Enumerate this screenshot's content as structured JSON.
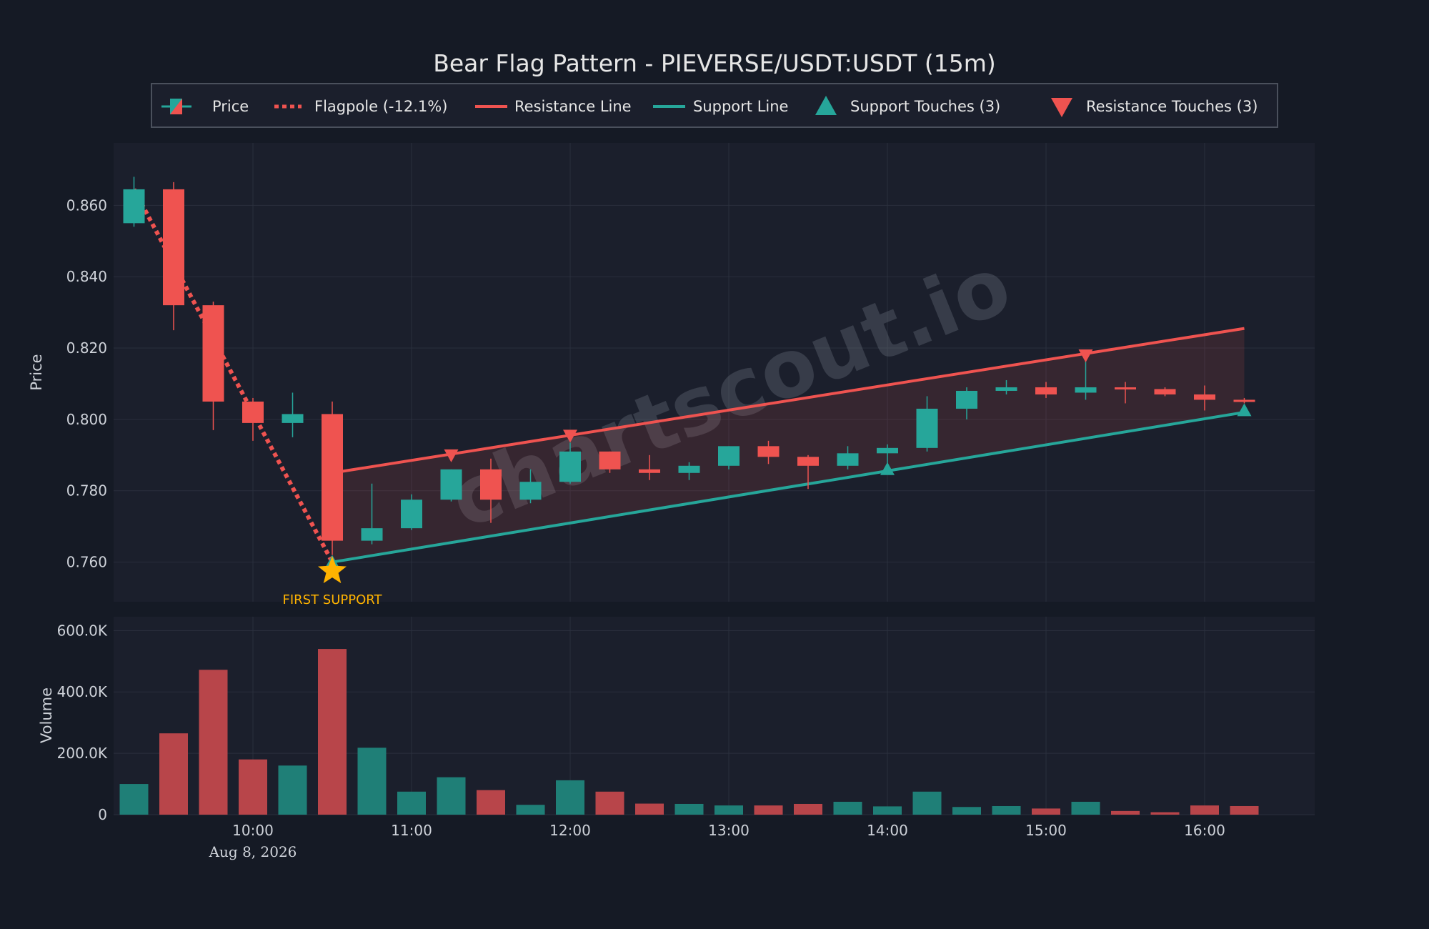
{
  "colors": {
    "background": "#151a25",
    "panel": "#1b1f2c",
    "grid": "#2a2f3d",
    "bull": "#26a69a",
    "bear": "#ef5350",
    "bull_volume": "#1f7f77",
    "bear_volume": "#b8454a",
    "text": "#e6e6e6",
    "label": "#cfd3da",
    "accent": "#ffb300",
    "watermark": "#6c7480"
  },
  "watermark": "chartscout.io",
  "chart_data": {
    "type": "candlestick",
    "title": "Bear Flag Pattern - PIEVERSE/USDT:USDT (15m)",
    "legend": {
      "placement": "top-center",
      "items": [
        {
          "key": "price",
          "label": "Price"
        },
        {
          "key": "flagpole",
          "label": "Flagpole (-12.1%)"
        },
        {
          "key": "resistance",
          "label": "Resistance Line"
        },
        {
          "key": "support",
          "label": "Support Line"
        },
        {
          "key": "support_touch",
          "label": "Support Touches (3)"
        },
        {
          "key": "resistance_touch",
          "label": "Resistance Touches (3)"
        }
      ]
    },
    "ylabel": "Price",
    "volume_label": "Volume",
    "date_label": "Aug 8, 2026",
    "x_ticks": [
      "10:00",
      "11:00",
      "12:00",
      "13:00",
      "14:00",
      "15:00",
      "16:00"
    ],
    "x_tick_hours": [
      10,
      11,
      12,
      13,
      14,
      15,
      16
    ],
    "price_ticks": [
      "0.760",
      "0.780",
      "0.800",
      "0.820",
      "0.840",
      "0.860"
    ],
    "price_tick_values": [
      0.76,
      0.78,
      0.8,
      0.82,
      0.84,
      0.86
    ],
    "price_range": [
      0.7489,
      0.8775
    ],
    "volume_ticks": [
      "0",
      "200.0K",
      "400.0K",
      "600.0K"
    ],
    "volume_tick_values": [
      0,
      200000,
      400000,
      600000
    ],
    "volume_range": [
      0,
      645000
    ],
    "candles": [
      {
        "t": "09:15",
        "o": 0.855,
        "h": 0.868,
        "l": 0.854,
        "c": 0.8645,
        "v": 100000
      },
      {
        "t": "09:30",
        "o": 0.8645,
        "h": 0.8665,
        "l": 0.825,
        "c": 0.832,
        "v": 265000
      },
      {
        "t": "09:45",
        "o": 0.832,
        "h": 0.833,
        "l": 0.797,
        "c": 0.805,
        "v": 472000
      },
      {
        "t": "10:00",
        "o": 0.805,
        "h": 0.806,
        "l": 0.794,
        "c": 0.799,
        "v": 180000
      },
      {
        "t": "10:15",
        "o": 0.799,
        "h": 0.8075,
        "l": 0.795,
        "c": 0.8015,
        "v": 160000
      },
      {
        "t": "10:30",
        "o": 0.8015,
        "h": 0.805,
        "l": 0.762,
        "c": 0.766,
        "v": 540000
      },
      {
        "t": "10:45",
        "o": 0.766,
        "h": 0.782,
        "l": 0.765,
        "c": 0.7695,
        "v": 218000
      },
      {
        "t": "11:00",
        "o": 0.7695,
        "h": 0.779,
        "l": 0.769,
        "c": 0.7775,
        "v": 75000
      },
      {
        "t": "11:15",
        "o": 0.7775,
        "h": 0.786,
        "l": 0.777,
        "c": 0.786,
        "v": 122000
      },
      {
        "t": "11:30",
        "o": 0.786,
        "h": 0.789,
        "l": 0.771,
        "c": 0.7775,
        "v": 80000
      },
      {
        "t": "11:45",
        "o": 0.7775,
        "h": 0.786,
        "l": 0.7765,
        "c": 0.7825,
        "v": 32000
      },
      {
        "t": "12:00",
        "o": 0.7825,
        "h": 0.7935,
        "l": 0.782,
        "c": 0.791,
        "v": 112000
      },
      {
        "t": "12:15",
        "o": 0.791,
        "h": 0.791,
        "l": 0.785,
        "c": 0.786,
        "v": 75000
      },
      {
        "t": "12:30",
        "o": 0.786,
        "h": 0.79,
        "l": 0.783,
        "c": 0.785,
        "v": 36000
      },
      {
        "t": "12:45",
        "o": 0.785,
        "h": 0.788,
        "l": 0.783,
        "c": 0.787,
        "v": 35000
      },
      {
        "t": "13:00",
        "o": 0.787,
        "h": 0.7925,
        "l": 0.786,
        "c": 0.7925,
        "v": 30000
      },
      {
        "t": "13:15",
        "o": 0.7925,
        "h": 0.794,
        "l": 0.7875,
        "c": 0.7895,
        "v": 30000
      },
      {
        "t": "13:30",
        "o": 0.7895,
        "h": 0.79,
        "l": 0.7805,
        "c": 0.787,
        "v": 35000
      },
      {
        "t": "13:45",
        "o": 0.787,
        "h": 0.7925,
        "l": 0.786,
        "c": 0.7905,
        "v": 42000
      },
      {
        "t": "14:00",
        "o": 0.7905,
        "h": 0.793,
        "l": 0.7855,
        "c": 0.792,
        "v": 27000
      },
      {
        "t": "14:15",
        "o": 0.792,
        "h": 0.8065,
        "l": 0.791,
        "c": 0.803,
        "v": 75000
      },
      {
        "t": "14:30",
        "o": 0.803,
        "h": 0.809,
        "l": 0.8,
        "c": 0.808,
        "v": 25000
      },
      {
        "t": "14:45",
        "o": 0.808,
        "h": 0.811,
        "l": 0.807,
        "c": 0.809,
        "v": 28000
      },
      {
        "t": "15:00",
        "o": 0.809,
        "h": 0.8105,
        "l": 0.806,
        "c": 0.807,
        "v": 20000
      },
      {
        "t": "15:15",
        "o": 0.8075,
        "h": 0.8175,
        "l": 0.8055,
        "c": 0.809,
        "v": 42000
      },
      {
        "t": "15:30",
        "o": 0.809,
        "h": 0.8105,
        "l": 0.8045,
        "c": 0.8085,
        "v": 12000
      },
      {
        "t": "15:45",
        "o": 0.8085,
        "h": 0.809,
        "l": 0.8065,
        "c": 0.807,
        "v": 8000
      },
      {
        "t": "16:00",
        "o": 0.807,
        "h": 0.8095,
        "l": 0.8025,
        "c": 0.8055,
        "v": 30000
      },
      {
        "t": "16:15",
        "o": 0.8055,
        "h": 0.806,
        "l": 0.8045,
        "c": 0.805,
        "v": 28000
      }
    ],
    "flagpole": [
      {
        "t": "09:15",
        "price": 0.8645
      },
      {
        "t": "10:30",
        "price": 0.76
      }
    ],
    "resistance_line": [
      {
        "t": "10:30",
        "price": 0.785
      },
      {
        "t": "16:15",
        "price": 0.8255
      }
    ],
    "support_line": [
      {
        "t": "10:30",
        "price": 0.76
      },
      {
        "t": "16:15",
        "price": 0.802
      }
    ],
    "support_touches": [
      {
        "t": "10:30",
        "price": 0.76
      },
      {
        "t": "14:00",
        "price": 0.786
      },
      {
        "t": "16:15",
        "price": 0.8025
      }
    ],
    "resistance_touches": [
      {
        "t": "11:15",
        "price": 0.79
      },
      {
        "t": "12:00",
        "price": 0.7955
      },
      {
        "t": "15:15",
        "price": 0.818
      }
    ],
    "annotation": {
      "t": "10:30",
      "price": 0.7575,
      "label": "FIRST SUPPORT"
    }
  }
}
